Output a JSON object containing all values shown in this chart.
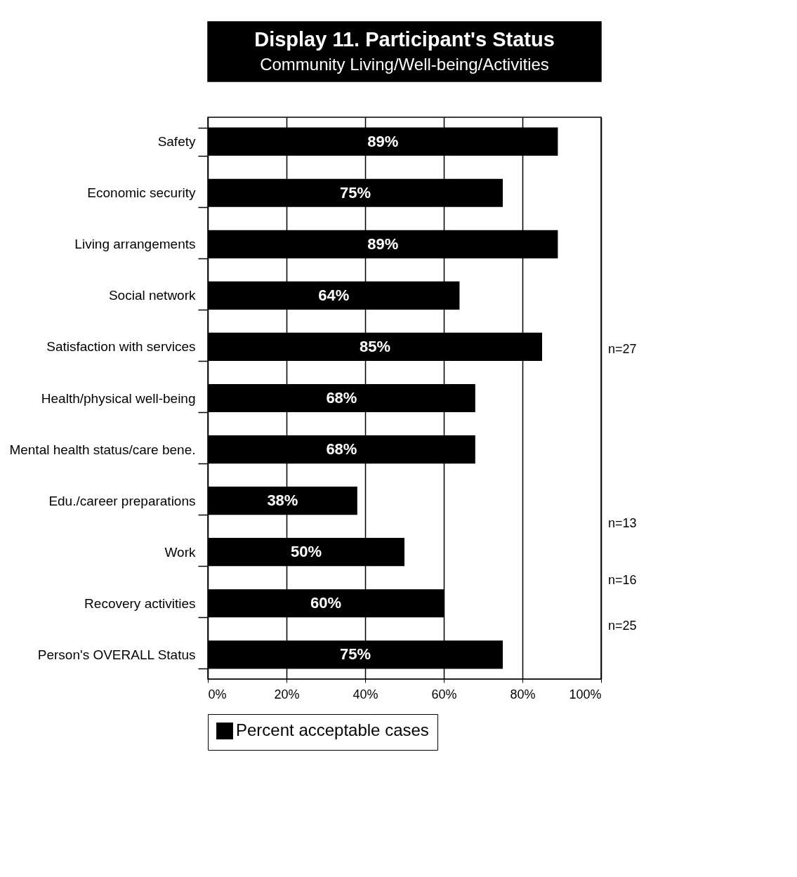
{
  "chart_data": {
    "type": "bar",
    "orientation": "horizontal",
    "title": "Display 11. Participant's Status",
    "subtitle": "Community Living/Well-being/Activities",
    "categories": [
      "Safety",
      "Economic security",
      "Living arrangements",
      "Social network",
      "Satisfaction with services",
      "Health/physical well-being",
      "Mental health status/care bene.",
      "Edu./career preparations",
      "Work",
      "Recovery activities",
      "Person's OVERALL Status"
    ],
    "series": [
      {
        "name": "Percent acceptable cases",
        "color": "#000000",
        "values": [
          89,
          75,
          89,
          64,
          85,
          68,
          68,
          38,
          50,
          60,
          75
        ],
        "value_labels": [
          "89%",
          "75%",
          "89%",
          "64%",
          "85%",
          "68%",
          "68%",
          "38%",
          "50%",
          "60%",
          "75%"
        ]
      }
    ],
    "xlim": [
      0,
      100
    ],
    "xticks": [
      {
        "value": 0,
        "label": "0%"
      },
      {
        "value": 20,
        "label": "20%"
      },
      {
        "value": 40,
        "label": "40%"
      },
      {
        "value": 60,
        "label": "60%"
      },
      {
        "value": 80,
        "label": "80%"
      },
      {
        "value": 100,
        "label": "100%"
      }
    ],
    "annotations": [
      "n=27",
      "n=13",
      "n=16",
      "n=25"
    ],
    "grid": "x",
    "legend": "bottom"
  }
}
